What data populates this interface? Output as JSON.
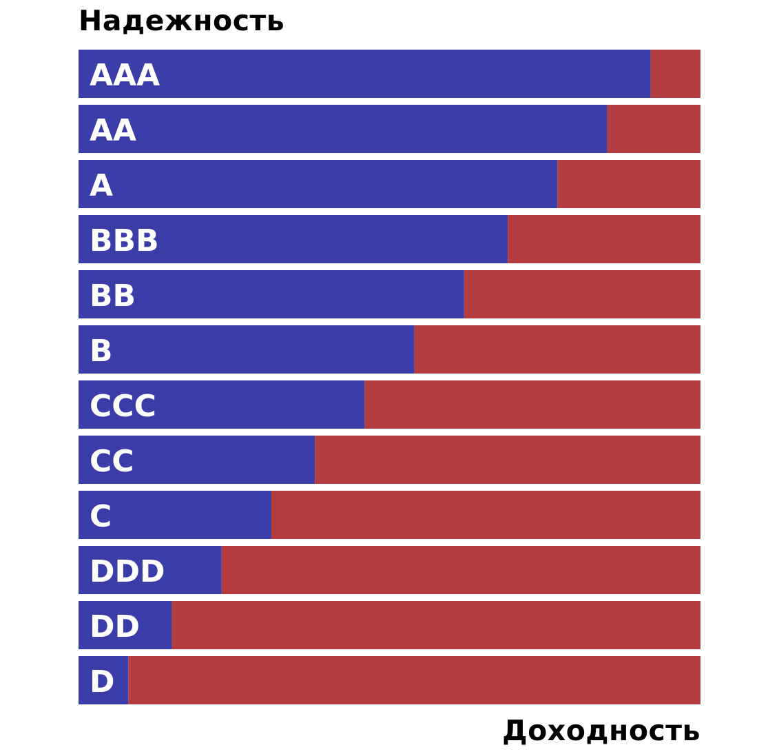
{
  "chart_data": {
    "type": "bar",
    "orientation": "horizontal",
    "stacked": true,
    "ylabel": "Надежность",
    "xlabel": "Доходность",
    "categories": [
      "AAA",
      "AA",
      "A",
      "BBB",
      "BB",
      "B",
      "CCC",
      "CC",
      "C",
      "DDD",
      "DD",
      "D"
    ],
    "series": [
      {
        "values": [
          92,
          85,
          77,
          69,
          62,
          54,
          46,
          38,
          31,
          23,
          15,
          8
        ],
        "color": "#3a3ca8"
      },
      {
        "values": [
          8,
          15,
          23,
          31,
          38,
          46,
          54,
          62,
          69,
          77,
          85,
          92
        ],
        "color": "#b33c40"
      }
    ],
    "xlim": [
      0,
      100
    ],
    "grid": false,
    "legend": "none",
    "axis_ticks": false
  }
}
